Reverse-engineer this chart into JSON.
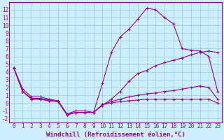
{
  "bg_color": "#cceeff",
  "line_color": "#990099",
  "grid_color": "#99cccc",
  "xlabel": "Windchill (Refroidissement éolien,°C)",
  "xlabel_fontsize": 6.5,
  "tick_fontsize": 5.5,
  "xlim": [
    -0.5,
    23.5
  ],
  "ylim": [
    -2.5,
    13
  ],
  "yticks": [
    -2,
    -1,
    0,
    1,
    2,
    3,
    4,
    5,
    6,
    7,
    8,
    9,
    10,
    11,
    12
  ],
  "xticks": [
    0,
    1,
    2,
    3,
    4,
    5,
    6,
    7,
    8,
    9,
    10,
    11,
    12,
    13,
    14,
    15,
    16,
    17,
    18,
    19,
    20,
    21,
    22,
    23
  ],
  "series": [
    {
      "x": [
        0,
        1,
        2,
        3,
        4,
        5,
        6,
        7,
        8,
        9,
        10,
        11,
        12,
        13,
        14,
        15,
        16,
        17,
        18,
        19,
        20,
        21,
        22,
        23
      ],
      "y": [
        4.5,
        1.8,
        0.8,
        0.8,
        0.5,
        0.3,
        -1.4,
        -1.0,
        -1.0,
        -1.2,
        2.5,
        6.5,
        8.5,
        9.5,
        10.8,
        12.2,
        12.0,
        11.0,
        10.2,
        7.0,
        6.8,
        6.7,
        6.0,
        1.5
      ]
    },
    {
      "x": [
        0,
        1,
        2,
        3,
        4,
        5,
        6,
        7,
        8,
        9,
        10,
        11,
        12,
        13,
        14,
        15,
        16,
        17,
        18,
        19,
        20,
        21,
        22,
        23
      ],
      "y": [
        4.5,
        1.5,
        0.6,
        0.6,
        0.4,
        0.2,
        -1.5,
        -1.2,
        -1.2,
        -1.2,
        -0.3,
        0.5,
        1.5,
        2.8,
        3.8,
        4.2,
        4.8,
        5.2,
        5.5,
        5.8,
        6.2,
        6.5,
        6.7,
        6.5
      ]
    },
    {
      "x": [
        0,
        1,
        2,
        3,
        4,
        5,
        6,
        7,
        8,
        9,
        10,
        11,
        12,
        13,
        14,
        15,
        16,
        17,
        18,
        19,
        20,
        21,
        22,
        23
      ],
      "y": [
        4.5,
        1.5,
        0.5,
        0.5,
        0.3,
        0.2,
        -1.5,
        -1.2,
        -1.2,
        -1.2,
        -0.2,
        0.2,
        0.5,
        0.8,
        1.0,
        1.2,
        1.3,
        1.5,
        1.6,
        1.8,
        2.0,
        2.2,
        2.0,
        0.5
      ]
    },
    {
      "x": [
        0,
        1,
        2,
        3,
        4,
        5,
        6,
        7,
        8,
        9,
        10,
        11,
        12,
        13,
        14,
        15,
        16,
        17,
        18,
        19,
        20,
        21,
        22,
        23
      ],
      "y": [
        4.5,
        1.5,
        0.5,
        0.5,
        0.3,
        0.2,
        -1.5,
        -1.2,
        -1.2,
        -1.2,
        -0.2,
        0.0,
        0.2,
        0.3,
        0.4,
        0.5,
        0.5,
        0.5,
        0.5,
        0.5,
        0.5,
        0.5,
        0.5,
        0.0
      ]
    }
  ]
}
